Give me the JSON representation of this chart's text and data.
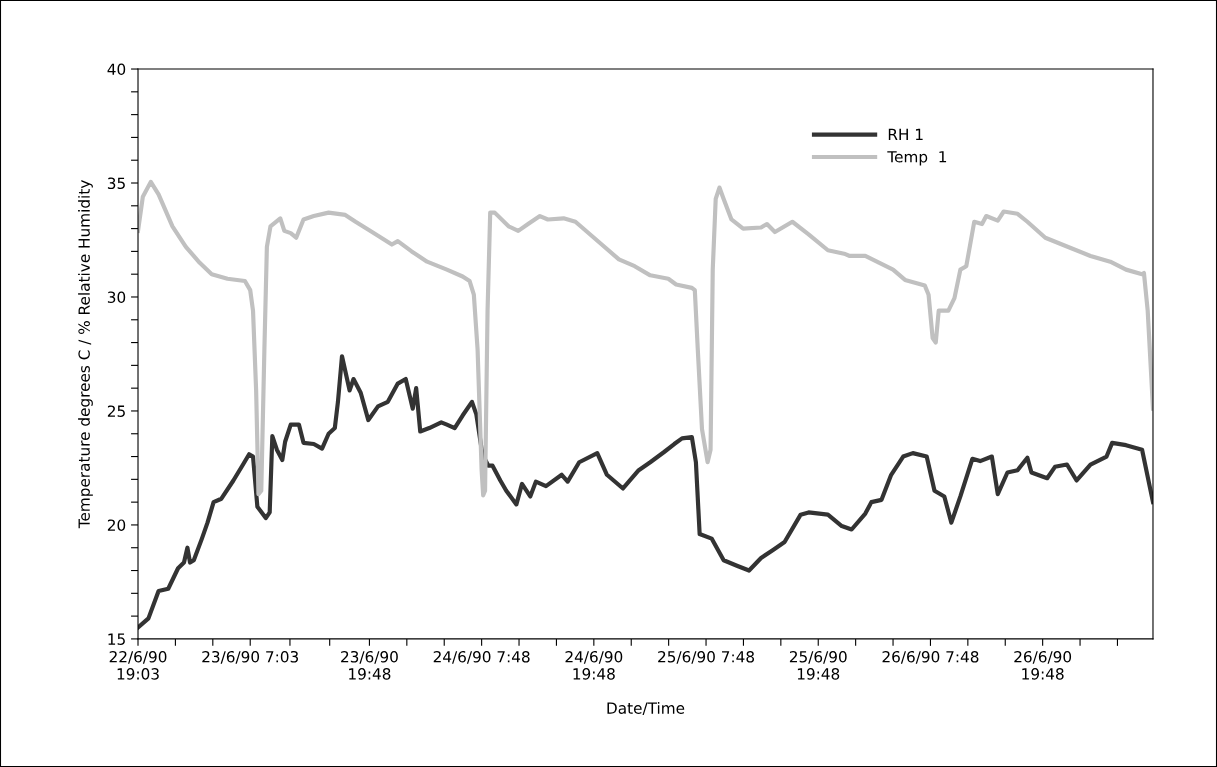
{
  "chart_data": {
    "type": "line",
    "xlabel": "Date/Time",
    "ylabel": "Temperature degrees C / % Relative Humidity",
    "xlim": [
      "1990-06-22T19:03",
      "1990-06-27T07:36"
    ],
    "ylim": [
      15,
      40
    ],
    "xticks": [
      {
        "value": "1990-06-22T19:03",
        "label": "22/6/90\n19:03"
      },
      {
        "value": "1990-06-22T23:03",
        "label": null
      },
      {
        "value": "1990-06-23T03:03",
        "label": null
      },
      {
        "value": "1990-06-23T07:03",
        "label": "23/6/90 7:03"
      },
      {
        "value": "1990-06-23T11:18",
        "label": null
      },
      {
        "value": "1990-06-23T15:33",
        "label": null
      },
      {
        "value": "1990-06-23T19:48",
        "label": "23/6/90\n19:48"
      },
      {
        "value": "1990-06-23T23:48",
        "label": null
      },
      {
        "value": "1990-06-24T03:48",
        "label": null
      },
      {
        "value": "1990-06-24T07:48",
        "label": "24/6/90 7:48"
      },
      {
        "value": "1990-06-24T11:48",
        "label": null
      },
      {
        "value": "1990-06-24T15:48",
        "label": null
      },
      {
        "value": "1990-06-24T19:48",
        "label": "24/6/90\n19:48"
      },
      {
        "value": "1990-06-24T23:48",
        "label": null
      },
      {
        "value": "1990-06-25T03:48",
        "label": null
      },
      {
        "value": "1990-06-25T07:48",
        "label": "25/6/90 7:48"
      },
      {
        "value": "1990-06-25T11:48",
        "label": null
      },
      {
        "value": "1990-06-25T15:48",
        "label": null
      },
      {
        "value": "1990-06-25T19:48",
        "label": "25/6/90\n19:48"
      },
      {
        "value": "1990-06-25T23:48",
        "label": null
      },
      {
        "value": "1990-06-26T03:48",
        "label": null
      },
      {
        "value": "1990-06-26T07:48",
        "label": "26/6/90 7:48"
      },
      {
        "value": "1990-06-26T11:48",
        "label": null
      },
      {
        "value": "1990-06-26T15:48",
        "label": null
      },
      {
        "value": "1990-06-26T19:48",
        "label": "26/6/90\n19:48"
      },
      {
        "value": "1990-06-26T23:48",
        "label": null
      },
      {
        "value": "1990-06-27T03:48",
        "label": null
      }
    ],
    "yticks": [
      15,
      {
        "value": 16,
        "label": null
      },
      {
        "value": 17,
        "label": null
      },
      {
        "value": 18,
        "label": null
      },
      {
        "value": 19,
        "label": null
      },
      20,
      {
        "value": 21,
        "label": null
      },
      {
        "value": 22,
        "label": null
      },
      {
        "value": 23,
        "label": null
      },
      {
        "value": 24,
        "label": null
      },
      25,
      {
        "value": 26,
        "label": null
      },
      {
        "value": 27,
        "label": null
      },
      {
        "value": 28,
        "label": null
      },
      {
        "value": 29,
        "label": null
      },
      30,
      {
        "value": 31,
        "label": null
      },
      {
        "value": 32,
        "label": null
      },
      {
        "value": 33,
        "label": null
      },
      {
        "value": 34,
        "label": null
      },
      35,
      {
        "value": 36,
        "label": null
      },
      {
        "value": 37,
        "label": null
      },
      {
        "value": 38,
        "label": null
      },
      {
        "value": 39,
        "label": null
      },
      40
    ],
    "grid": false,
    "legend": "top right",
    "marker": "none",
    "line_style": "solid",
    "series": [
      {
        "name": "RH 1",
        "color": "#333333",
        "x": [
          "1990-06-22T19:03",
          "1990-06-22T20:10",
          "1990-06-22T21:15",
          "1990-06-22T22:17",
          "1990-06-22T23:20",
          "1990-06-22T23:58",
          "1990-06-23T00:20",
          "1990-06-23T00:37",
          "1990-06-23T01:01",
          "1990-06-23T01:53",
          "1990-06-23T02:29",
          "1990-06-23T03:08",
          "1990-06-23T03:58",
          "1990-06-23T05:15",
          "1990-06-23T06:17",
          "1990-06-23T06:56",
          "1990-06-23T07:21",
          "1990-06-23T07:49",
          "1990-06-23T08:43",
          "1990-06-23T09:08",
          "1990-06-23T09:25",
          "1990-06-23T09:54",
          "1990-06-23T10:29",
          "1990-06-23T10:47",
          "1990-06-23T11:23",
          "1990-06-23T12:16",
          "1990-06-23T12:45",
          "1990-06-23T13:51",
          "1990-06-23T14:44",
          "1990-06-23T15:26",
          "1990-06-23T16:06",
          "1990-06-23T16:26",
          "1990-06-23T16:52",
          "1990-06-23T17:41",
          "1990-06-23T18:06",
          "1990-06-23T18:52",
          "1990-06-23T19:41",
          "1990-06-23T20:43",
          "1990-06-23T21:46",
          "1990-06-23T22:50",
          "1990-06-23T23:41",
          "1990-06-24T00:26",
          "1990-06-24T00:48",
          "1990-06-24T01:14",
          "1990-06-24T02:12",
          "1990-06-24T03:29",
          "1990-06-24T04:05",
          "1990-06-24T04:55",
          "1990-06-24T05:46",
          "1990-06-24T06:46",
          "1990-06-24T07:14",
          "1990-06-24T07:53",
          "1990-06-24T08:31",
          "1990-06-24T08:58",
          "1990-06-24T09:48",
          "1990-06-24T10:26",
          "1990-06-24T11:31",
          "1990-06-24T12:07",
          "1990-06-24T13:00",
          "1990-06-24T13:36",
          "1990-06-24T14:41",
          "1990-06-24T16:22",
          "1990-06-24T17:00",
          "1990-06-24T18:14",
          "1990-06-24T20:10",
          "1990-06-24T21:12",
          "1990-06-24T22:55",
          "1990-06-25T00:36",
          "1990-06-25T01:50",
          "1990-06-25T03:19",
          "1990-06-25T04:24",
          "1990-06-25T05:14",
          "1990-06-25T06:17",
          "1990-06-25T06:43",
          "1990-06-25T07:07",
          "1990-06-25T08:24",
          "1990-06-25T09:41",
          "1990-06-25T11:10",
          "1990-06-25T12:24",
          "1990-06-25T13:41",
          "1990-06-25T14:58",
          "1990-06-25T16:12",
          "1990-06-25T17:55",
          "1990-06-25T18:46",
          "1990-06-25T20:50",
          "1990-06-25T22:19",
          "1990-06-25T23:22",
          "1990-06-26T00:50",
          "1990-06-26T01:29",
          "1990-06-26T02:34",
          "1990-06-26T03:36",
          "1990-06-26T04:53",
          "1990-06-26T05:55",
          "1990-06-26T07:24",
          "1990-06-26T08:14",
          "1990-06-26T09:17",
          "1990-06-26T10:02",
          "1990-06-26T11:00",
          "1990-06-26T12:17",
          "1990-06-26T13:07",
          "1990-06-26T14:22",
          "1990-06-26T15:00",
          "1990-06-26T16:02",
          "1990-06-26T17:07",
          "1990-06-26T18:10",
          "1990-06-26T18:36",
          "1990-06-26T20:17",
          "1990-06-26T21:07",
          "1990-06-26T22:24",
          "1990-06-26T23:26",
          "1990-06-27T00:55",
          "1990-06-27T02:38",
          "1990-06-27T03:14",
          "1990-06-27T04:43",
          "1990-06-27T06:26",
          "1990-06-27T07:36"
        ],
        "values": [
          15.5,
          15.9,
          17.1,
          17.2,
          18.1,
          18.35,
          19.0,
          18.35,
          18.45,
          19.4,
          20.1,
          21.0,
          21.15,
          21.95,
          22.65,
          23.1,
          23.0,
          20.8,
          20.3,
          20.55,
          23.9,
          23.3,
          22.85,
          23.65,
          24.4,
          24.4,
          23.6,
          23.55,
          23.35,
          24.0,
          24.25,
          25.4,
          27.4,
          25.9,
          26.4,
          25.8,
          24.6,
          25.2,
          25.4,
          26.2,
          26.4,
          25.1,
          26.0,
          24.1,
          24.25,
          24.5,
          24.4,
          24.25,
          24.8,
          25.4,
          24.85,
          23.1,
          22.6,
          22.6,
          21.95,
          21.5,
          20.9,
          21.8,
          21.25,
          21.9,
          21.7,
          22.2,
          21.9,
          22.75,
          23.15,
          22.2,
          21.6,
          22.4,
          22.75,
          23.2,
          23.55,
          23.8,
          23.85,
          22.75,
          19.6,
          19.4,
          18.45,
          18.2,
          18.0,
          18.55,
          18.9,
          19.25,
          20.45,
          20.55,
          20.45,
          19.95,
          19.8,
          20.5,
          21.0,
          21.1,
          22.2,
          23.0,
          23.15,
          23.0,
          21.5,
          21.25,
          20.1,
          21.25,
          22.9,
          22.8,
          23.0,
          21.35,
          22.3,
          22.4,
          22.95,
          22.3,
          22.05,
          22.55,
          22.65,
          21.95,
          22.65,
          23.0,
          23.6,
          23.5,
          23.3,
          21.0
        ]
      },
      {
        "name": "Temp  1",
        "color": "#c0c0c0",
        "x": [
          "1990-06-22T19:03",
          "1990-06-22T19:34",
          "1990-06-22T20:25",
          "1990-06-22T21:15",
          "1990-06-22T22:44",
          "1990-06-23T00:10",
          "1990-06-23T01:39",
          "1990-06-23T02:56",
          "1990-06-23T04:37",
          "1990-06-23T06:29",
          "1990-06-23T07:03",
          "1990-06-23T07:21",
          "1990-06-23T07:41",
          "1990-06-23T07:56",
          "1990-06-23T08:14",
          "1990-06-23T08:34",
          "1990-06-23T08:50",
          "1990-06-23T09:13",
          "1990-06-23T10:16",
          "1990-06-23T10:42",
          "1990-06-23T11:23",
          "1990-06-23T11:58",
          "1990-06-23T12:45",
          "1990-06-23T13:51",
          "1990-06-23T15:26",
          "1990-06-23T17:13",
          "1990-06-23T18:19",
          "1990-06-23T20:05",
          "1990-06-23T22:12",
          "1990-06-23T22:50",
          "1990-06-24T00:19",
          "1990-06-24T01:58",
          "1990-06-24T04:05",
          "1990-06-24T05:46",
          "1990-06-24T06:31",
          "1990-06-24T06:58",
          "1990-06-24T07:22",
          "1990-06-24T07:48",
          "1990-06-24T07:58",
          "1990-06-24T08:10",
          "1990-06-24T08:26",
          "1990-06-24T08:43",
          "1990-06-24T09:12",
          "1990-06-24T10:41",
          "1990-06-24T11:43",
          "1990-06-24T12:46",
          "1990-06-24T14:02",
          "1990-06-24T14:53",
          "1990-06-24T16:34",
          "1990-06-24T17:50",
          "1990-06-24T20:22",
          "1990-06-24T22:29",
          "1990-06-25T00:10",
          "1990-06-25T01:50",
          "1990-06-25T03:46",
          "1990-06-25T04:36",
          "1990-06-25T06:17",
          "1990-06-25T06:36",
          "1990-06-25T06:55",
          "1990-06-25T07:22",
          "1990-06-25T07:58",
          "1990-06-25T08:17",
          "1990-06-25T08:31",
          "1990-06-25T08:50",
          "1990-06-25T09:14",
          "1990-06-25T09:41",
          "1990-06-25T10:31",
          "1990-06-25T11:46",
          "1990-06-25T13:41",
          "1990-06-25T14:19",
          "1990-06-25T15:10",
          "1990-06-25T17:02",
          "1990-06-25T18:46",
          "1990-06-25T20:50",
          "1990-06-25T22:34",
          "1990-06-25T23:10",
          "1990-06-26T00:50",
          "1990-06-26T03:48",
          "1990-06-26T05:05",
          "1990-06-26T07:12",
          "1990-06-26T07:36",
          "1990-06-26T08:02",
          "1990-06-26T08:22",
          "1990-06-26T08:41",
          "1990-06-26T09:43",
          "1990-06-26T10:22",
          "1990-06-26T11:00",
          "1990-06-26T11:38",
          "1990-06-26T12:29",
          "1990-06-26T13:19",
          "1990-06-26T13:46",
          "1990-06-26T15:00",
          "1990-06-26T15:38",
          "1990-06-26T17:07",
          "1990-06-26T18:10",
          "1990-06-26T20:05",
          "1990-06-26T22:48",
          "1990-06-27T00:55",
          "1990-06-27T03:02",
          "1990-06-27T04:43",
          "1990-06-27T06:26",
          "1990-06-27T06:38",
          "1990-06-27T07:02",
          "1990-06-27T07:36"
        ],
        "values": [
          32.9,
          34.4,
          35.05,
          34.5,
          33.1,
          32.2,
          31.5,
          31.0,
          30.8,
          30.7,
          30.3,
          29.4,
          25.9,
          21.35,
          21.5,
          27.7,
          32.2,
          33.1,
          33.45,
          32.9,
          32.8,
          32.6,
          33.4,
          33.55,
          33.7,
          33.6,
          33.3,
          32.85,
          32.3,
          32.45,
          32.0,
          31.55,
          31.2,
          30.9,
          30.7,
          30.1,
          27.7,
          22.4,
          21.3,
          21.5,
          29.4,
          33.7,
          33.7,
          33.1,
          32.9,
          33.2,
          33.55,
          33.4,
          33.45,
          33.3,
          32.4,
          31.65,
          31.35,
          30.95,
          30.8,
          30.55,
          30.4,
          30.3,
          27.7,
          24.2,
          22.75,
          23.3,
          31.2,
          34.3,
          34.8,
          34.3,
          33.4,
          33.0,
          33.05,
          33.2,
          32.85,
          33.3,
          32.75,
          32.05,
          31.9,
          31.8,
          31.8,
          31.2,
          30.75,
          30.5,
          30.1,
          28.2,
          28.0,
          29.4,
          29.4,
          29.95,
          31.2,
          31.35,
          33.3,
          33.2,
          33.55,
          33.35,
          33.75,
          33.65,
          33.3,
          32.6,
          32.15,
          31.8,
          31.55,
          31.2,
          31.0,
          31.05,
          29.4,
          25.1
        ]
      }
    ]
  }
}
